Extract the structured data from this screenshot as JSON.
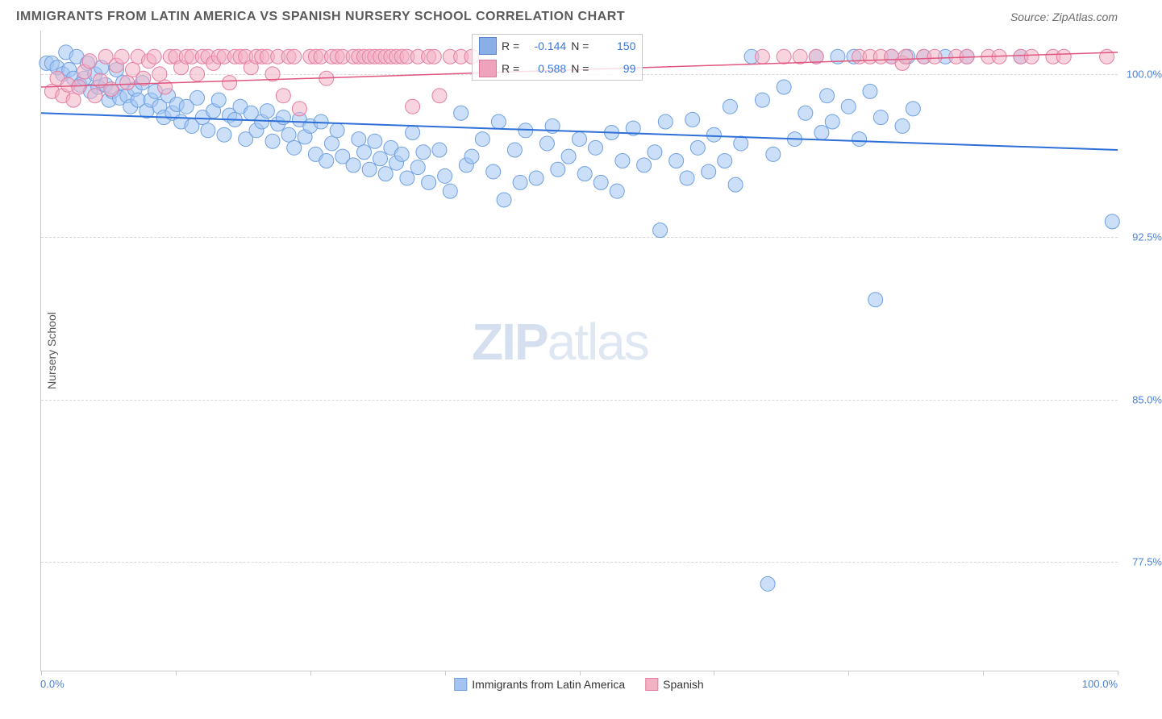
{
  "header": {
    "title": "IMMIGRANTS FROM LATIN AMERICA VS SPANISH NURSERY SCHOOL CORRELATION CHART",
    "source_label": "Source: ",
    "source_value": "ZipAtlas.com"
  },
  "chart": {
    "type": "scatter",
    "ylabel": "Nursery School",
    "xlim": [
      0,
      100
    ],
    "ylim": [
      72.5,
      102
    ],
    "xtick_positions": [
      0,
      12.5,
      25,
      37.5,
      50,
      62.5,
      75,
      87.5,
      100
    ],
    "ytick_positions": [
      77.5,
      85.0,
      92.5,
      100.0
    ],
    "ytick_labels": [
      "77.5%",
      "85.0%",
      "92.5%",
      "100.0%"
    ],
    "x_left_label": "0.0%",
    "x_right_label": "100.0%",
    "grid_color": "#d8d8d8",
    "background_color": "#ffffff",
    "series": [
      {
        "name": "Immigrants from Latin America",
        "marker_color_fill": "#a3c4f3",
        "marker_color_stroke": "#6fa0e0",
        "marker_radius": 9,
        "fill_opacity": 0.55,
        "trend_color": "#2e6fd8",
        "trend_width": 2,
        "trend": {
          "x1": 0,
          "y1": 98.2,
          "x2": 100,
          "y2": 96.5
        },
        "R": "-0.144",
        "N": "150",
        "points": [
          [
            0.5,
            100.5
          ],
          [
            1,
            100.5
          ],
          [
            1.5,
            100.3
          ],
          [
            2,
            100.0
          ],
          [
            2.3,
            101.0
          ],
          [
            2.6,
            100.2
          ],
          [
            3,
            99.8
          ],
          [
            3.3,
            100.8
          ],
          [
            3.6,
            99.5
          ],
          [
            4,
            99.8
          ],
          [
            4.3,
            100.5
          ],
          [
            4.6,
            99.2
          ],
          [
            5,
            100.0
          ],
          [
            5.3,
            99.4
          ],
          [
            5.6,
            100.3
          ],
          [
            6,
            99.5
          ],
          [
            6.3,
            98.8
          ],
          [
            6.6,
            99.2
          ],
          [
            7,
            100.2
          ],
          [
            7.3,
            98.9
          ],
          [
            7.6,
            99.6
          ],
          [
            8,
            99.0
          ],
          [
            8.3,
            98.5
          ],
          [
            8.7,
            99.3
          ],
          [
            9,
            98.8
          ],
          [
            9.4,
            99.6
          ],
          [
            9.8,
            98.3
          ],
          [
            10.2,
            98.8
          ],
          [
            10.6,
            99.2
          ],
          [
            11,
            98.5
          ],
          [
            11.4,
            98.0
          ],
          [
            11.8,
            99.0
          ],
          [
            12.2,
            98.2
          ],
          [
            12.6,
            98.6
          ],
          [
            13,
            97.8
          ],
          [
            13.5,
            98.5
          ],
          [
            14,
            97.6
          ],
          [
            14.5,
            98.9
          ],
          [
            15,
            98.0
          ],
          [
            15.5,
            97.4
          ],
          [
            16,
            98.3
          ],
          [
            16.5,
            98.8
          ],
          [
            17,
            97.2
          ],
          [
            17.5,
            98.1
          ],
          [
            18,
            97.9
          ],
          [
            18.5,
            98.5
          ],
          [
            19,
            97.0
          ],
          [
            19.5,
            98.2
          ],
          [
            20,
            97.4
          ],
          [
            20.5,
            97.8
          ],
          [
            21,
            98.3
          ],
          [
            21.5,
            96.9
          ],
          [
            22,
            97.7
          ],
          [
            22.5,
            98.0
          ],
          [
            23,
            97.2
          ],
          [
            23.5,
            96.6
          ],
          [
            24,
            97.9
          ],
          [
            24.5,
            97.1
          ],
          [
            25,
            97.6
          ],
          [
            25.5,
            96.3
          ],
          [
            26,
            97.8
          ],
          [
            26.5,
            96.0
          ],
          [
            27,
            96.8
          ],
          [
            27.5,
            97.4
          ],
          [
            28,
            96.2
          ],
          [
            29,
            95.8
          ],
          [
            29.5,
            97.0
          ],
          [
            30,
            96.4
          ],
          [
            30.5,
            95.6
          ],
          [
            31,
            96.9
          ],
          [
            31.5,
            96.1
          ],
          [
            32,
            95.4
          ],
          [
            32.5,
            96.6
          ],
          [
            33,
            95.9
          ],
          [
            33.5,
            96.3
          ],
          [
            34,
            95.2
          ],
          [
            34.5,
            97.3
          ],
          [
            35,
            95.7
          ],
          [
            35.5,
            96.4
          ],
          [
            36,
            95.0
          ],
          [
            37,
            96.5
          ],
          [
            37.5,
            95.3
          ],
          [
            38,
            94.6
          ],
          [
            39,
            98.2
          ],
          [
            39.5,
            95.8
          ],
          [
            40,
            96.2
          ],
          [
            41,
            97.0
          ],
          [
            42,
            95.5
          ],
          [
            42.5,
            97.8
          ],
          [
            43,
            94.2
          ],
          [
            44,
            96.5
          ],
          [
            44.5,
            95.0
          ],
          [
            45,
            97.4
          ],
          [
            46,
            95.2
          ],
          [
            47,
            96.8
          ],
          [
            47.5,
            97.6
          ],
          [
            48,
            95.6
          ],
          [
            49,
            96.2
          ],
          [
            50,
            97.0
          ],
          [
            50.5,
            95.4
          ],
          [
            51.5,
            96.6
          ],
          [
            52,
            95.0
          ],
          [
            53,
            97.3
          ],
          [
            53.5,
            94.6
          ],
          [
            54,
            96.0
          ],
          [
            55,
            97.5
          ],
          [
            56,
            95.8
          ],
          [
            57,
            96.4
          ],
          [
            57.5,
            92.8
          ],
          [
            58,
            97.8
          ],
          [
            59,
            96.0
          ],
          [
            60,
            95.2
          ],
          [
            60.5,
            97.9
          ],
          [
            61,
            96.6
          ],
          [
            62,
            95.5
          ],
          [
            62.5,
            97.2
          ],
          [
            63.5,
            96.0
          ],
          [
            64,
            98.5
          ],
          [
            64.5,
            94.9
          ],
          [
            65,
            96.8
          ],
          [
            66,
            100.8
          ],
          [
            67,
            98.8
          ],
          [
            67.5,
            76.5
          ],
          [
            68,
            96.3
          ],
          [
            69,
            99.4
          ],
          [
            70,
            97.0
          ],
          [
            71,
            98.2
          ],
          [
            72,
            100.8
          ],
          [
            72.5,
            97.3
          ],
          [
            73,
            99.0
          ],
          [
            73.5,
            97.8
          ],
          [
            74,
            100.8
          ],
          [
            75,
            98.5
          ],
          [
            75.5,
            100.8
          ],
          [
            76,
            97.0
          ],
          [
            77,
            99.2
          ],
          [
            77.5,
            89.6
          ],
          [
            78,
            98.0
          ],
          [
            79,
            100.8
          ],
          [
            80,
            97.6
          ],
          [
            80.5,
            100.8
          ],
          [
            81,
            98.4
          ],
          [
            82,
            100.8
          ],
          [
            84,
            100.8
          ],
          [
            86,
            100.8
          ],
          [
            91,
            100.8
          ],
          [
            99.5,
            93.2
          ]
        ]
      },
      {
        "name": "Spanish",
        "marker_color_fill": "#f3b1c4",
        "marker_color_stroke": "#e37da2",
        "marker_radius": 9,
        "fill_opacity": 0.55,
        "trend_color": "#e0567f",
        "trend_width": 1.5,
        "trend": {
          "x1": 0,
          "y1": 99.4,
          "x2": 100,
          "y2": 101.0
        },
        "R": "0.588",
        "N": "99",
        "points": [
          [
            1,
            99.2
          ],
          [
            1.5,
            99.8
          ],
          [
            2,
            99.0
          ],
          [
            2.5,
            99.5
          ],
          [
            3,
            98.8
          ],
          [
            3.5,
            99.4
          ],
          [
            4,
            100.1
          ],
          [
            4.5,
            100.6
          ],
          [
            5,
            99.0
          ],
          [
            5.5,
            99.7
          ],
          [
            6,
            100.8
          ],
          [
            6.5,
            99.3
          ],
          [
            7,
            100.4
          ],
          [
            7.5,
            100.8
          ],
          [
            8,
            99.6
          ],
          [
            8.5,
            100.2
          ],
          [
            9,
            100.8
          ],
          [
            9.5,
            99.8
          ],
          [
            10,
            100.6
          ],
          [
            10.5,
            100.8
          ],
          [
            11,
            100.0
          ],
          [
            11.5,
            99.4
          ],
          [
            12,
            100.8
          ],
          [
            12.5,
            100.8
          ],
          [
            13,
            100.3
          ],
          [
            13.5,
            100.8
          ],
          [
            14,
            100.8
          ],
          [
            14.5,
            100.0
          ],
          [
            15,
            100.8
          ],
          [
            15.5,
            100.8
          ],
          [
            16,
            100.5
          ],
          [
            16.5,
            100.8
          ],
          [
            17,
            100.8
          ],
          [
            17.5,
            99.6
          ],
          [
            18,
            100.8
          ],
          [
            18.5,
            100.8
          ],
          [
            19,
            100.8
          ],
          [
            19.5,
            100.3
          ],
          [
            20,
            100.8
          ],
          [
            20.5,
            100.8
          ],
          [
            21,
            100.8
          ],
          [
            21.5,
            100.0
          ],
          [
            22,
            100.8
          ],
          [
            22.5,
            99.0
          ],
          [
            23,
            100.8
          ],
          [
            23.5,
            100.8
          ],
          [
            24,
            98.4
          ],
          [
            25,
            100.8
          ],
          [
            25.5,
            100.8
          ],
          [
            26,
            100.8
          ],
          [
            26.5,
            99.8
          ],
          [
            27,
            100.8
          ],
          [
            27.5,
            100.8
          ],
          [
            28,
            100.8
          ],
          [
            29,
            100.8
          ],
          [
            29.5,
            100.8
          ],
          [
            30,
            100.8
          ],
          [
            30.5,
            100.8
          ],
          [
            31,
            100.8
          ],
          [
            31.5,
            100.8
          ],
          [
            32,
            100.8
          ],
          [
            32.5,
            100.8
          ],
          [
            33,
            100.8
          ],
          [
            33.5,
            100.8
          ],
          [
            34,
            100.8
          ],
          [
            34.5,
            98.5
          ],
          [
            35,
            100.8
          ],
          [
            36,
            100.8
          ],
          [
            36.5,
            100.8
          ],
          [
            37,
            99.0
          ],
          [
            38,
            100.8
          ],
          [
            39,
            100.8
          ],
          [
            40,
            100.8
          ],
          [
            67,
            100.8
          ],
          [
            69,
            100.8
          ],
          [
            70.5,
            100.8
          ],
          [
            72,
            100.8
          ],
          [
            76,
            100.8
          ],
          [
            77,
            100.8
          ],
          [
            78,
            100.8
          ],
          [
            79,
            100.8
          ],
          [
            80,
            100.5
          ],
          [
            80.3,
            100.8
          ],
          [
            82,
            100.8
          ],
          [
            83,
            100.8
          ],
          [
            85,
            100.8
          ],
          [
            86,
            100.8
          ],
          [
            88,
            100.8
          ],
          [
            89,
            100.8
          ],
          [
            91,
            100.8
          ],
          [
            92,
            100.8
          ],
          [
            94,
            100.8
          ],
          [
            95,
            100.8
          ],
          [
            99,
            100.8
          ]
        ]
      }
    ]
  },
  "bottom_legend": {
    "items": [
      {
        "label": "Immigrants from Latin America",
        "fill": "#a3c4f3",
        "stroke": "#6fa0e0"
      },
      {
        "label": "Spanish",
        "fill": "#f3b1c4",
        "stroke": "#e37da2"
      }
    ]
  },
  "watermark": {
    "bold": "ZIP",
    "light": "atlas"
  },
  "stats_box": {
    "rows": [
      {
        "fill": "#8aaee6",
        "stroke": "#5a86d0",
        "r_label": "R =",
        "r_val": "-0.144",
        "n_label": "N =",
        "n_val": "150"
      },
      {
        "fill": "#efa2bb",
        "stroke": "#d97b9f",
        "r_label": "R =",
        "r_val": "0.588",
        "n_label": "N =",
        "n_val": "99"
      }
    ]
  }
}
